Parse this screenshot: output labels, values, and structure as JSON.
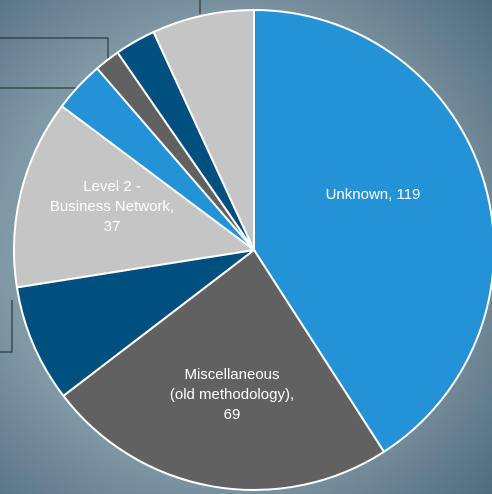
{
  "chart_data": {
    "type": "pie",
    "values": [
      119,
      69,
      23,
      37,
      10,
      5,
      8,
      20
    ],
    "colors": [
      "#2492d6",
      "#616161",
      "#00507f",
      "#c5c5c5",
      "#2492d6",
      "#616161",
      "#00507f",
      "#c5c5c5"
    ],
    "labels": [
      [
        "Unknown, 119"
      ],
      [
        "Miscellaneous",
        "(old methodology),",
        "69"
      ],
      null,
      [
        "Level 2 -",
        "Business Network,",
        "37"
      ],
      null,
      null,
      null,
      null
    ],
    "start_angle": 0,
    "direction": "clockwise"
  }
}
